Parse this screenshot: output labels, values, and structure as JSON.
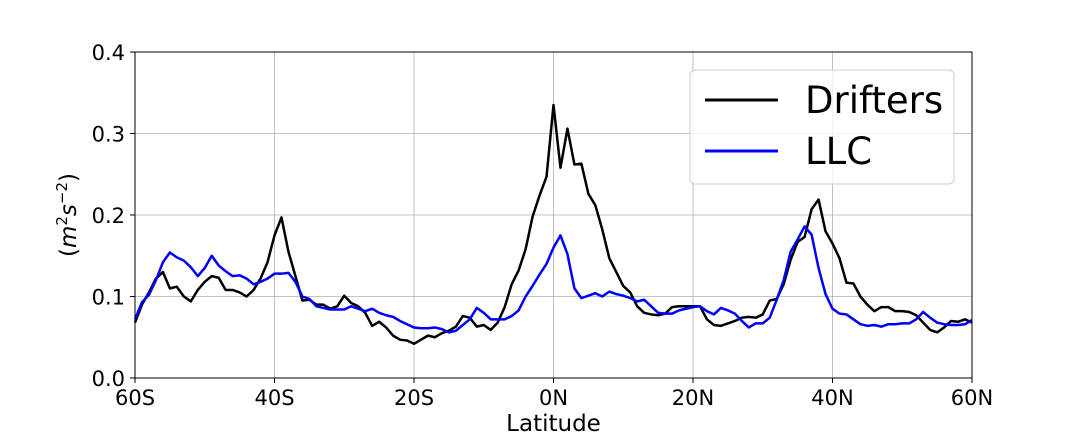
{
  "chart_data": {
    "type": "line",
    "xlabel": "Latitude",
    "ylabel": "(m²s⁻²)",
    "ylabel_parts": {
      "open": "(",
      "m": "m",
      "m_exp": "2",
      "s": "s",
      "s_exp": "−2",
      "close": ")"
    },
    "xlim": [
      -60,
      60
    ],
    "ylim": [
      0.0,
      0.4
    ],
    "x_ticks": [
      -60,
      -40,
      -20,
      0,
      20,
      40,
      60
    ],
    "x_tick_labels": [
      "60S",
      "40S",
      "20S",
      "0N",
      "20N",
      "40N",
      "60N"
    ],
    "y_ticks": [
      0.0,
      0.1,
      0.2,
      0.3,
      0.4
    ],
    "y_tick_labels": [
      "0.0",
      "0.1",
      "0.2",
      "0.3",
      "0.4"
    ],
    "grid": true,
    "legend_position": "top-right",
    "series": [
      {
        "name": "Drifters",
        "color": "#000000",
        "points": [
          [
            -60,
            0.068
          ],
          [
            -59,
            0.09
          ],
          [
            -58,
            0.105
          ],
          [
            -57,
            0.122
          ],
          [
            -56,
            0.13
          ],
          [
            -55,
            0.11
          ],
          [
            -54,
            0.112
          ],
          [
            -53,
            0.1
          ],
          [
            -52,
            0.094
          ],
          [
            -51,
            0.108
          ],
          [
            -50,
            0.118
          ],
          [
            -49,
            0.125
          ],
          [
            -48,
            0.123
          ],
          [
            -47,
            0.108
          ],
          [
            -46,
            0.108
          ],
          [
            -45,
            0.105
          ],
          [
            -44,
            0.1
          ],
          [
            -43,
            0.108
          ],
          [
            -42,
            0.122
          ],
          [
            -41,
            0.142
          ],
          [
            -40,
            0.175
          ],
          [
            -39,
            0.197
          ],
          [
            -38,
            0.155
          ],
          [
            -37,
            0.125
          ],
          [
            -36,
            0.095
          ],
          [
            -35,
            0.096
          ],
          [
            -34,
            0.09
          ],
          [
            -33,
            0.09
          ],
          [
            -32,
            0.085
          ],
          [
            -31,
            0.088
          ],
          [
            -30,
            0.101
          ],
          [
            -29,
            0.092
          ],
          [
            -28,
            0.088
          ],
          [
            -27,
            0.08
          ],
          [
            -26,
            0.064
          ],
          [
            -25,
            0.069
          ],
          [
            -24,
            0.062
          ],
          [
            -23,
            0.052
          ],
          [
            -22,
            0.047
          ],
          [
            -21,
            0.046
          ],
          [
            -20,
            0.042
          ],
          [
            -19,
            0.047
          ],
          [
            -18,
            0.052
          ],
          [
            -17,
            0.05
          ],
          [
            -16,
            0.055
          ],
          [
            -15,
            0.058
          ],
          [
            -14,
            0.063
          ],
          [
            -13,
            0.076
          ],
          [
            -12,
            0.074
          ],
          [
            -11,
            0.063
          ],
          [
            -10,
            0.065
          ],
          [
            -9,
            0.059
          ],
          [
            -8,
            0.068
          ],
          [
            -7,
            0.087
          ],
          [
            -6,
            0.115
          ],
          [
            -5,
            0.132
          ],
          [
            -4,
            0.158
          ],
          [
            -3,
            0.198
          ],
          [
            -2,
            0.224
          ],
          [
            -1,
            0.247
          ],
          [
            0,
            0.335
          ],
          [
            1,
            0.258
          ],
          [
            2,
            0.306
          ],
          [
            3,
            0.262
          ],
          [
            4,
            0.263
          ],
          [
            5,
            0.226
          ],
          [
            6,
            0.212
          ],
          [
            7,
            0.182
          ],
          [
            8,
            0.147
          ],
          [
            9,
            0.13
          ],
          [
            10,
            0.113
          ],
          [
            11,
            0.105
          ],
          [
            12,
            0.088
          ],
          [
            13,
            0.08
          ],
          [
            14,
            0.078
          ],
          [
            15,
            0.077
          ],
          [
            16,
            0.079
          ],
          [
            17,
            0.087
          ],
          [
            18,
            0.088
          ],
          [
            19,
            0.088
          ],
          [
            20,
            0.088
          ],
          [
            21,
            0.088
          ],
          [
            22,
            0.072
          ],
          [
            23,
            0.065
          ],
          [
            24,
            0.064
          ],
          [
            25,
            0.067
          ],
          [
            26,
            0.07
          ],
          [
            27,
            0.074
          ],
          [
            28,
            0.075
          ],
          [
            29,
            0.074
          ],
          [
            30,
            0.078
          ],
          [
            31,
            0.095
          ],
          [
            32,
            0.097
          ],
          [
            33,
            0.115
          ],
          [
            34,
            0.145
          ],
          [
            35,
            0.167
          ],
          [
            36,
            0.173
          ],
          [
            37,
            0.207
          ],
          [
            38,
            0.219
          ],
          [
            39,
            0.18
          ],
          [
            40,
            0.165
          ],
          [
            41,
            0.147
          ],
          [
            42,
            0.117
          ],
          [
            43,
            0.116
          ],
          [
            44,
            0.1
          ],
          [
            45,
            0.09
          ],
          [
            46,
            0.082
          ],
          [
            47,
            0.087
          ],
          [
            48,
            0.087
          ],
          [
            49,
            0.082
          ],
          [
            50,
            0.082
          ],
          [
            51,
            0.081
          ],
          [
            52,
            0.077
          ],
          [
            53,
            0.068
          ],
          [
            54,
            0.059
          ],
          [
            55,
            0.056
          ],
          [
            56,
            0.062
          ],
          [
            57,
            0.07
          ],
          [
            58,
            0.069
          ],
          [
            59,
            0.072
          ],
          [
            60,
            0.068
          ]
        ]
      },
      {
        "name": "LLC",
        "color": "#0000ff",
        "points": [
          [
            -60,
            0.072
          ],
          [
            -59,
            0.093
          ],
          [
            -58,
            0.102
          ],
          [
            -57,
            0.12
          ],
          [
            -56,
            0.142
          ],
          [
            -55,
            0.154
          ],
          [
            -54,
            0.148
          ],
          [
            -53,
            0.144
          ],
          [
            -52,
            0.136
          ],
          [
            -51,
            0.125
          ],
          [
            -50,
            0.135
          ],
          [
            -49,
            0.15
          ],
          [
            -48,
            0.138
          ],
          [
            -47,
            0.131
          ],
          [
            -46,
            0.125
          ],
          [
            -45,
            0.126
          ],
          [
            -44,
            0.122
          ],
          [
            -43,
            0.115
          ],
          [
            -42,
            0.118
          ],
          [
            -41,
            0.122
          ],
          [
            -40,
            0.128
          ],
          [
            -39,
            0.128
          ],
          [
            -38,
            0.129
          ],
          [
            -37,
            0.118
          ],
          [
            -36,
            0.1
          ],
          [
            -35,
            0.097
          ],
          [
            -34,
            0.088
          ],
          [
            -33,
            0.086
          ],
          [
            -32,
            0.084
          ],
          [
            -31,
            0.084
          ],
          [
            -30,
            0.084
          ],
          [
            -29,
            0.088
          ],
          [
            -28,
            0.085
          ],
          [
            -27,
            0.082
          ],
          [
            -26,
            0.085
          ],
          [
            -25,
            0.08
          ],
          [
            -24,
            0.077
          ],
          [
            -23,
            0.075
          ],
          [
            -22,
            0.07
          ],
          [
            -21,
            0.066
          ],
          [
            -20,
            0.062
          ],
          [
            -19,
            0.061
          ],
          [
            -18,
            0.061
          ],
          [
            -17,
            0.062
          ],
          [
            -16,
            0.06
          ],
          [
            -15,
            0.056
          ],
          [
            -14,
            0.058
          ],
          [
            -13,
            0.065
          ],
          [
            -12,
            0.072
          ],
          [
            -11,
            0.086
          ],
          [
            -10,
            0.08
          ],
          [
            -9,
            0.072
          ],
          [
            -8,
            0.072
          ],
          [
            -7,
            0.072
          ],
          [
            -6,
            0.076
          ],
          [
            -5,
            0.083
          ],
          [
            -4,
            0.1
          ],
          [
            -3,
            0.113
          ],
          [
            -2,
            0.127
          ],
          [
            -1,
            0.14
          ],
          [
            0,
            0.16
          ],
          [
            1,
            0.175
          ],
          [
            2,
            0.152
          ],
          [
            3,
            0.11
          ],
          [
            4,
            0.098
          ],
          [
            5,
            0.101
          ],
          [
            6,
            0.104
          ],
          [
            7,
            0.1
          ],
          [
            8,
            0.106
          ],
          [
            9,
            0.103
          ],
          [
            10,
            0.101
          ],
          [
            11,
            0.098
          ],
          [
            12,
            0.094
          ],
          [
            13,
            0.096
          ],
          [
            14,
            0.088
          ],
          [
            15,
            0.08
          ],
          [
            16,
            0.079
          ],
          [
            17,
            0.079
          ],
          [
            18,
            0.083
          ],
          [
            19,
            0.085
          ],
          [
            20,
            0.087
          ],
          [
            21,
            0.088
          ],
          [
            22,
            0.082
          ],
          [
            23,
            0.078
          ],
          [
            24,
            0.086
          ],
          [
            25,
            0.083
          ],
          [
            26,
            0.079
          ],
          [
            27,
            0.07
          ],
          [
            28,
            0.062
          ],
          [
            29,
            0.067
          ],
          [
            30,
            0.067
          ],
          [
            31,
            0.074
          ],
          [
            32,
            0.096
          ],
          [
            33,
            0.12
          ],
          [
            34,
            0.155
          ],
          [
            35,
            0.17
          ],
          [
            36,
            0.186
          ],
          [
            37,
            0.176
          ],
          [
            38,
            0.135
          ],
          [
            39,
            0.103
          ],
          [
            40,
            0.085
          ],
          [
            41,
            0.079
          ],
          [
            42,
            0.078
          ],
          [
            43,
            0.072
          ],
          [
            44,
            0.066
          ],
          [
            45,
            0.064
          ],
          [
            46,
            0.065
          ],
          [
            47,
            0.063
          ],
          [
            48,
            0.066
          ],
          [
            49,
            0.066
          ],
          [
            50,
            0.067
          ],
          [
            51,
            0.067
          ],
          [
            52,
            0.072
          ],
          [
            53,
            0.081
          ],
          [
            54,
            0.074
          ],
          [
            55,
            0.068
          ],
          [
            56,
            0.066
          ],
          [
            57,
            0.065
          ],
          [
            58,
            0.065
          ],
          [
            59,
            0.066
          ],
          [
            60,
            0.071
          ]
        ]
      }
    ]
  }
}
